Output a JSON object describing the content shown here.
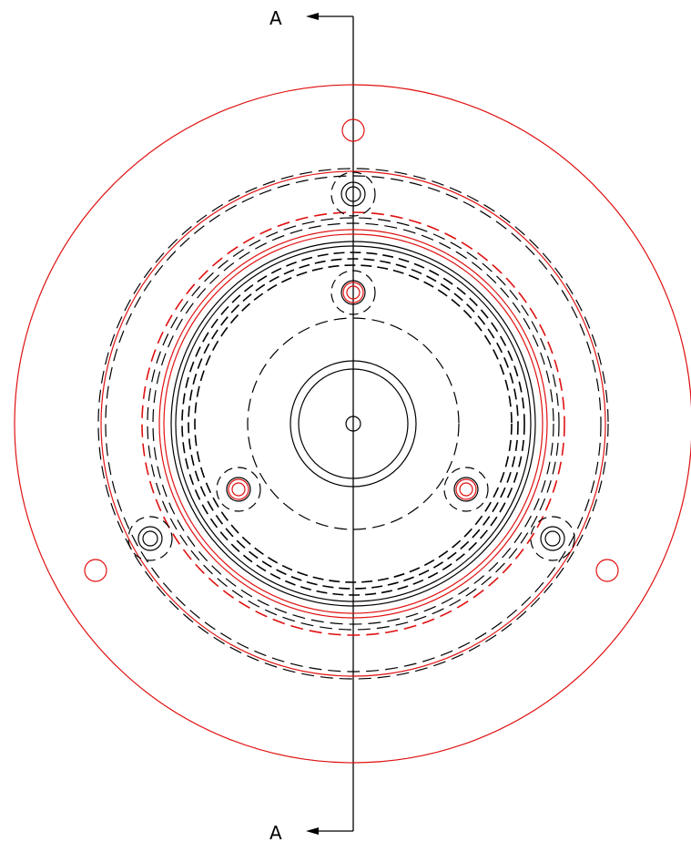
{
  "section_marker": {
    "top_label": "A",
    "bottom_label": "A"
  },
  "colors": {
    "line": "#000000",
    "accent": "#e01010",
    "background": "#ffffff"
  }
}
